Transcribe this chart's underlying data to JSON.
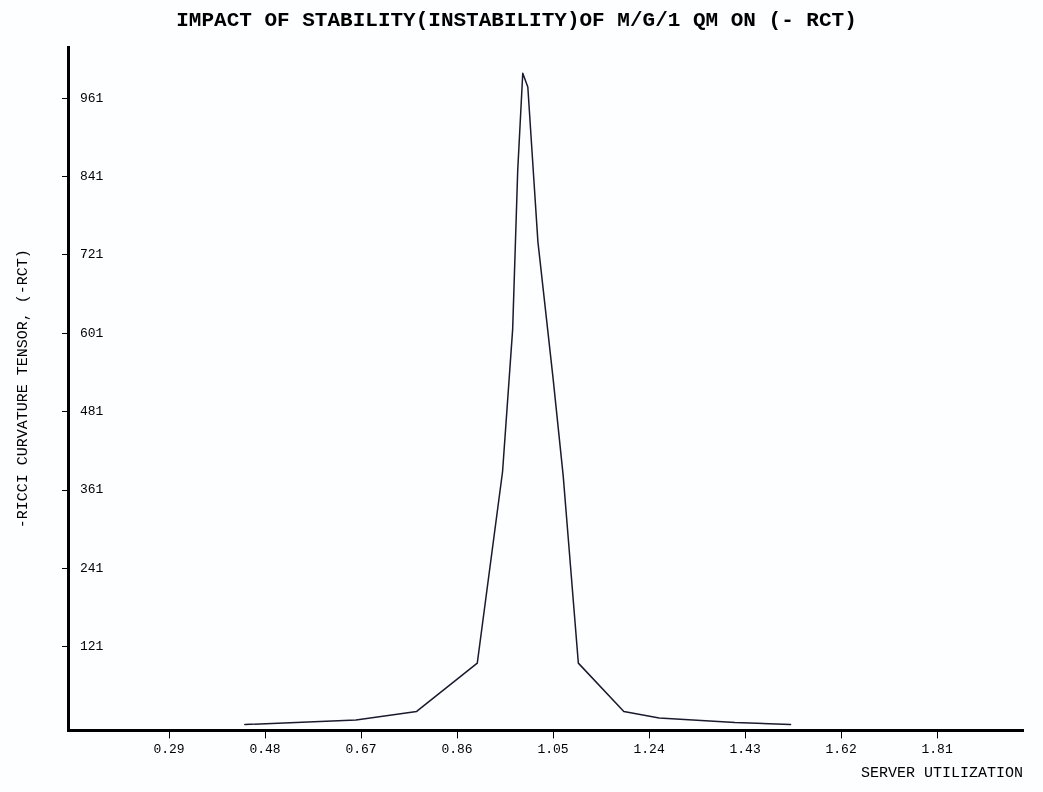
{
  "chart_data": {
    "type": "line",
    "title": "IMPACT OF STABILITY(INSTABILITY)OF M/G/1 QM ON (- RCT)",
    "xlabel": "SERVER UTILIZATION",
    "ylabel": "-RICCI CURVATURE TENSOR, (-RCT)",
    "series": [
      {
        "color": "#1a1a2e",
        "x": [
          0.44,
          0.66,
          0.78,
          0.9,
          0.95,
          0.97,
          0.98,
          0.99,
          1.0,
          1.02,
          1.05,
          1.07,
          1.1,
          1.19,
          1.26,
          1.41,
          1.52
        ],
        "values": [
          2,
          9,
          22,
          96,
          389,
          607,
          850,
          999,
          978,
          741,
          532,
          383,
          96,
          22,
          12,
          5,
          2
        ]
      }
    ],
    "xlim": [
      0.09,
      1.98
    ],
    "ylim": [
      -7,
      1039
    ],
    "xticks": [
      0.29,
      0.48,
      0.67,
      0.86,
      1.05,
      1.24,
      1.43,
      1.62,
      1.81
    ],
    "yticks": [
      121,
      241,
      361,
      481,
      601,
      721,
      841,
      961
    ],
    "grid": false,
    "legend": false,
    "marker": "none",
    "line_style": "solid"
  }
}
